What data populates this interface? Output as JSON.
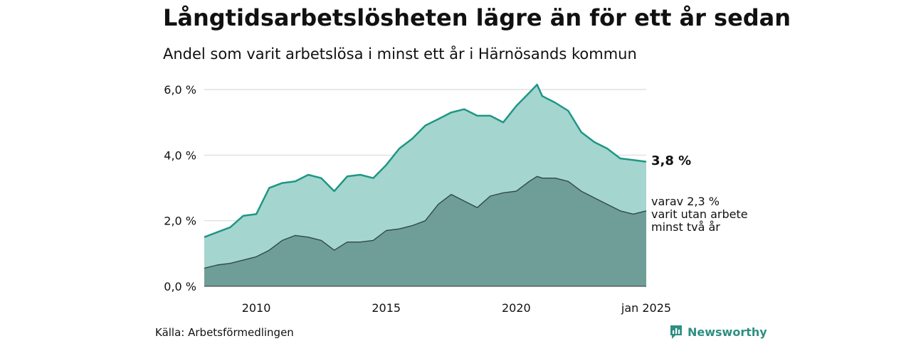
{
  "header": {
    "title": "Långtidsarbetslösheten lägre än för ett år sedan",
    "subtitle": "Andel som varit arbetslösa i minst ett år i Härnösands kommun"
  },
  "footer": {
    "source": "Källa: Arbetsförmedlingen",
    "brand": "Newsworthy"
  },
  "annotations": {
    "end_value": "3,8 %",
    "sub_lines": [
      "varav 2,3 %",
      "varit utan arbete",
      "minst två år"
    ]
  },
  "colors": {
    "upper_fill": "#a5d5cf",
    "upper_line": "#1f9685",
    "lower_fill": "#6f9e98",
    "lower_line": "#2f4a46",
    "grid": "#d9d9d9",
    "brand": "#2f8f83"
  },
  "chart_data": {
    "type": "area",
    "y_tick_labels": [
      "0,0 %",
      "2,0 %",
      "4,0 %",
      "6,0 %"
    ],
    "y_ticks": [
      0,
      2,
      4,
      6
    ],
    "x_tick_labels": [
      "2010",
      "2015",
      "2020",
      "jan 2025"
    ],
    "x_ticks": [
      2010,
      2015,
      2020,
      2025
    ],
    "xlim": [
      2008,
      2025
    ],
    "ylim": [
      0,
      6.5
    ],
    "grid": true,
    "series": [
      {
        "x": [
          2008.0,
          2008.5,
          2009.0,
          2009.5,
          2010.0,
          2010.5,
          2011.0,
          2011.5,
          2012.0,
          2012.5,
          2013.0,
          2013.5,
          2014.0,
          2014.5,
          2015.0,
          2015.5,
          2016.0,
          2016.5,
          2017.0,
          2017.5,
          2018.0,
          2018.5,
          2019.0,
          2019.5,
          2020.0,
          2020.5,
          2020.8,
          2021.0,
          2021.5,
          2022.0,
          2022.5,
          2023.0,
          2023.5,
          2024.0,
          2024.5,
          2025.0
        ],
        "values": [
          1.5,
          1.65,
          1.8,
          2.15,
          2.2,
          3.0,
          3.15,
          3.2,
          3.4,
          3.3,
          2.9,
          3.35,
          3.4,
          3.3,
          3.7,
          4.2,
          4.5,
          4.9,
          5.1,
          5.3,
          5.4,
          5.2,
          5.2,
          5.0,
          5.5,
          5.9,
          6.15,
          5.8,
          5.6,
          5.35,
          4.7,
          4.4,
          4.2,
          3.9,
          3.85,
          3.8
        ]
      },
      {
        "x": [
          2008.0,
          2008.5,
          2009.0,
          2009.5,
          2010.0,
          2010.5,
          2011.0,
          2011.5,
          2012.0,
          2012.5,
          2013.0,
          2013.5,
          2014.0,
          2014.5,
          2015.0,
          2015.5,
          2016.0,
          2016.5,
          2017.0,
          2017.5,
          2018.0,
          2018.5,
          2019.0,
          2019.5,
          2020.0,
          2020.5,
          2020.8,
          2021.0,
          2021.5,
          2022.0,
          2022.5,
          2023.0,
          2023.5,
          2024.0,
          2024.5,
          2025.0
        ],
        "values": [
          0.55,
          0.65,
          0.7,
          0.8,
          0.9,
          1.1,
          1.4,
          1.55,
          1.5,
          1.4,
          1.1,
          1.35,
          1.35,
          1.4,
          1.7,
          1.75,
          1.85,
          2.0,
          2.5,
          2.8,
          2.6,
          2.4,
          2.75,
          2.85,
          2.9,
          3.2,
          3.35,
          3.3,
          3.3,
          3.2,
          2.9,
          2.7,
          2.5,
          2.3,
          2.2,
          2.3
        ]
      }
    ]
  }
}
